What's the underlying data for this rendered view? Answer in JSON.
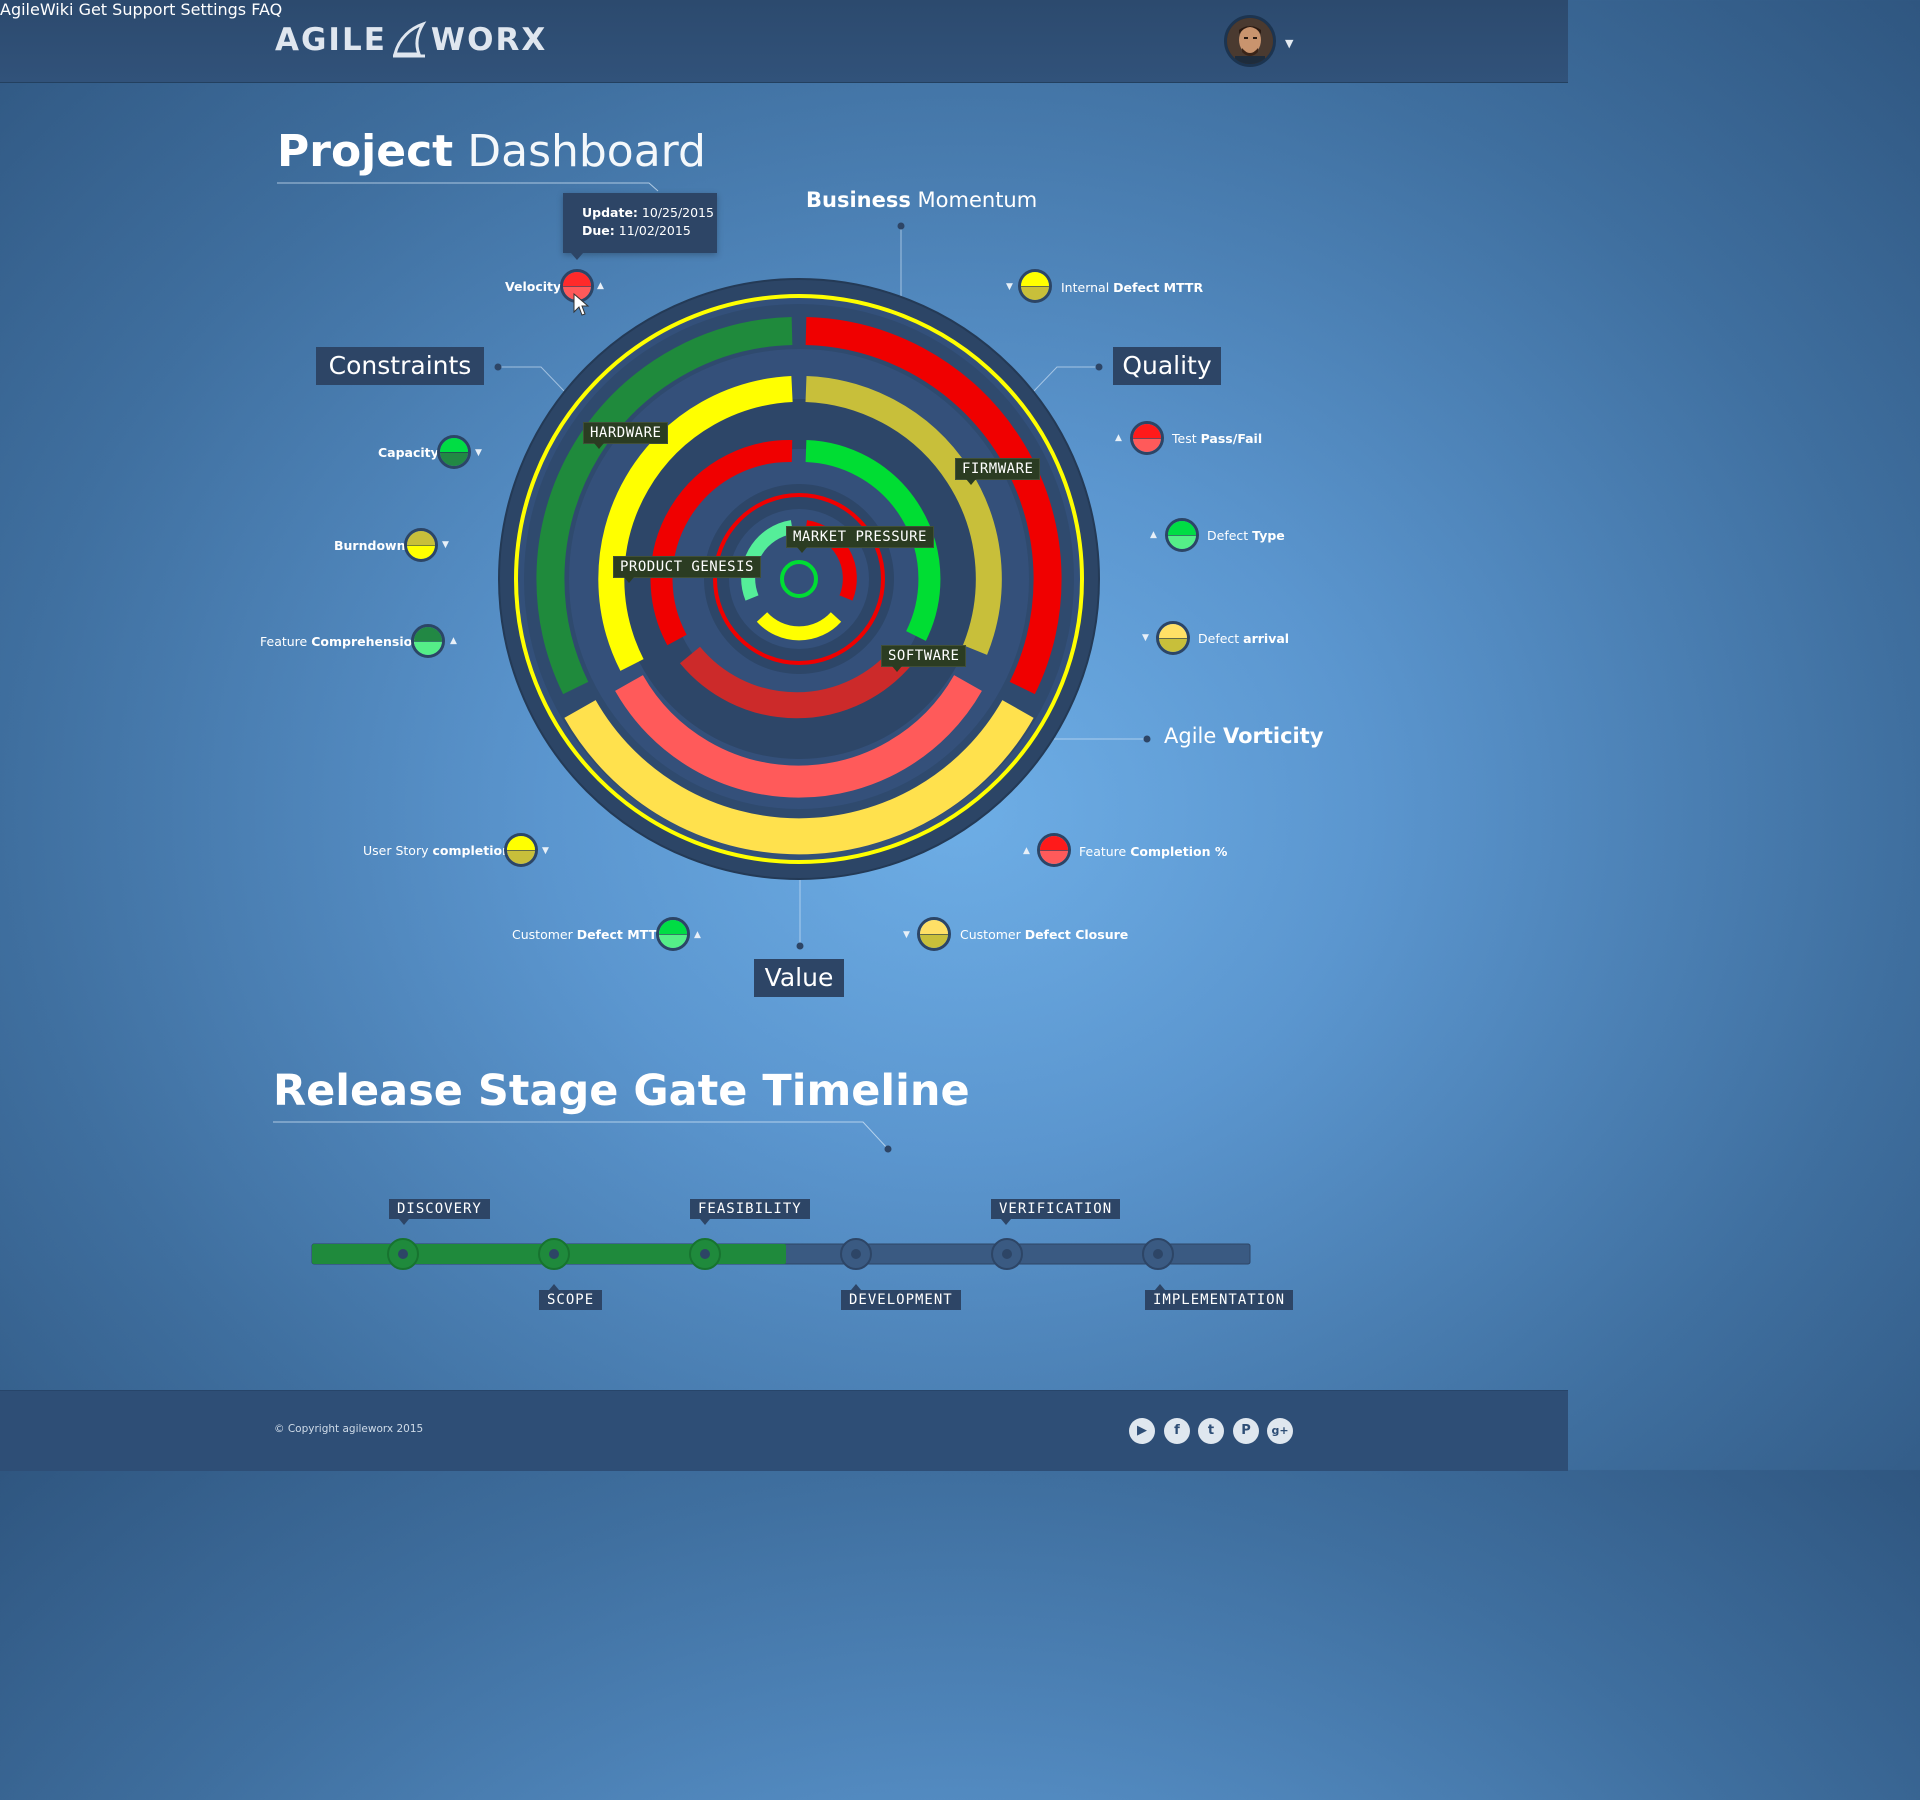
{
  "header": {
    "logo_left": "AGILE",
    "logo_right": "WORX",
    "nav": [
      "AgileWiki",
      "Get Support",
      "Settings",
      "FAQ"
    ],
    "avatar_caret": "▼"
  },
  "title": {
    "bold": "Project",
    "light": "Dashboard"
  },
  "tooltip": {
    "update_label": "Update:",
    "update_value": "10/25/2015",
    "due_label": "Due:",
    "due_value": "11/02/2015"
  },
  "sections": {
    "constraints": "Constraints",
    "quality": "Quality",
    "value": "Value",
    "business_bold": "Business",
    "business_light": "Momentum",
    "agile_light": "Agile",
    "agile_bold": "Vorticity"
  },
  "ring_labels": {
    "hardware": "HARDWARE",
    "firmware": "FIRMWARE",
    "software": "SOFTWARE",
    "market_pressure": "MARKET PRESSURE",
    "product_genesis": "PRODUCT GENESIS"
  },
  "kpis": {
    "velocity": {
      "light": "",
      "bold": "Velocity",
      "top": "#ff2a2a",
      "bottom": "#ff5a5a",
      "trend": "▲"
    },
    "internal_defect": {
      "light": "Internal",
      "bold": "Defect MTTR",
      "top": "#ffff00",
      "bottom": "#c8bf3a",
      "trend": "▼"
    },
    "capacity": {
      "light": "",
      "bold": "Capacity",
      "top": "#00dd44",
      "bottom": "#228844",
      "trend": "▼"
    },
    "burndown": {
      "light": "",
      "bold": "Burndown",
      "top": "#c8bf3a",
      "bottom": "#ffff00",
      "trend": "▼"
    },
    "feature_comprehension": {
      "light": "Feature",
      "bold": "Comprehension",
      "top": "#228844",
      "bottom": "#55ee88",
      "trend": "▲"
    },
    "test_pass_fail": {
      "light": "Test",
      "bold": "Pass/Fail",
      "top": "#ff1a1a",
      "bottom": "#ff5a5a",
      "trend": "▲"
    },
    "defect_type": {
      "light": "Defect",
      "bold": "Type",
      "top": "#00dd44",
      "bottom": "#55ee88",
      "trend": "▲"
    },
    "defect_arrival": {
      "light": "Defect",
      "bold": "arrival",
      "top": "#ffe066",
      "bottom": "#c8bf3a",
      "trend": "▼"
    },
    "user_story": {
      "light": "User Story",
      "bold": "completion",
      "top": "#ffff00",
      "bottom": "#c8bf3a",
      "trend": "▼"
    },
    "feature_completion": {
      "light": "Feature",
      "bold": "Completion %",
      "top": "#ff1a1a",
      "bottom": "#ff5a5a",
      "trend": "▲"
    },
    "customer_defect_mttr": {
      "light": "Customer",
      "bold": "Defect MTTR",
      "top": "#00dd44",
      "bottom": "#55ee88",
      "trend": "▲"
    },
    "customer_defect_closure": {
      "light": "Customer",
      "bold": "Defect Closure",
      "top": "#ffe066",
      "bottom": "#c8bf3a",
      "trend": "▼"
    }
  },
  "timeline": {
    "title": "Release Stage Gate Timeline",
    "progress_fraction": 0.505,
    "stages": [
      {
        "label": "DISCOVERY",
        "done": true
      },
      {
        "label": "SCOPE",
        "done": true
      },
      {
        "label": "FEASIBILITY",
        "done": true
      },
      {
        "label": "DEVELOPMENT",
        "done": false
      },
      {
        "label": "VERIFICATION",
        "done": false
      },
      {
        "label": "IMPLEMENTATION",
        "done": false
      }
    ]
  },
  "footer": {
    "copyright": "© Copyright agileworx 2015",
    "social": [
      "youtube-icon",
      "facebook-icon",
      "twitter-icon",
      "pinterest-icon",
      "google-plus-icon"
    ]
  },
  "colors": {
    "green": "#1f8a3c",
    "yellow": "#ffff00",
    "olive": "#c8bf3a",
    "red": "#f00000",
    "salmon": "#ff5a5a",
    "bright_green": "#00dd33",
    "mint": "#55ee99",
    "navy": "#2d4566"
  }
}
